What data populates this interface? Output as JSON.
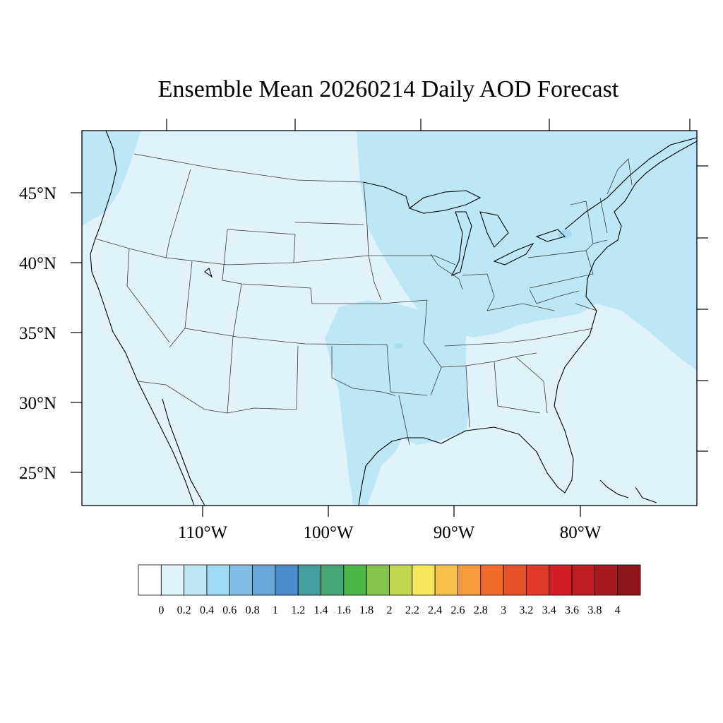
{
  "title": "Ensemble Mean 20260214 Daily AOD Forecast",
  "lat_labels": [
    "45°N",
    "40°N",
    "35°N",
    "30°N",
    "25°N"
  ],
  "lon_labels": [
    "110°W",
    "100°W",
    "90°W",
    "80°W"
  ],
  "colorbar": {
    "colors": [
      "#ffffff",
      "#e0f3fb",
      "#bde6f7",
      "#a0d9f4",
      "#82bde6",
      "#67a6da",
      "#4a8ccc",
      "#459d9f",
      "#46a774",
      "#4cb747",
      "#86c54d",
      "#c3d64f",
      "#f6e659",
      "#f8c04a",
      "#f79a3c",
      "#f36b2b",
      "#e8522a",
      "#e03a28",
      "#d21f27",
      "#c01c24",
      "#a91a20",
      "#8f161a"
    ],
    "labels": [
      "0",
      "0.2",
      "0.4",
      "0.6",
      "0.8",
      "1",
      "1.2",
      "1.4",
      "1.6",
      "1.8",
      "2",
      "2.2",
      "2.4",
      "2.6",
      "2.8",
      "3",
      "3.2",
      "3.4",
      "3.6",
      "3.8",
      "4"
    ]
  }
}
